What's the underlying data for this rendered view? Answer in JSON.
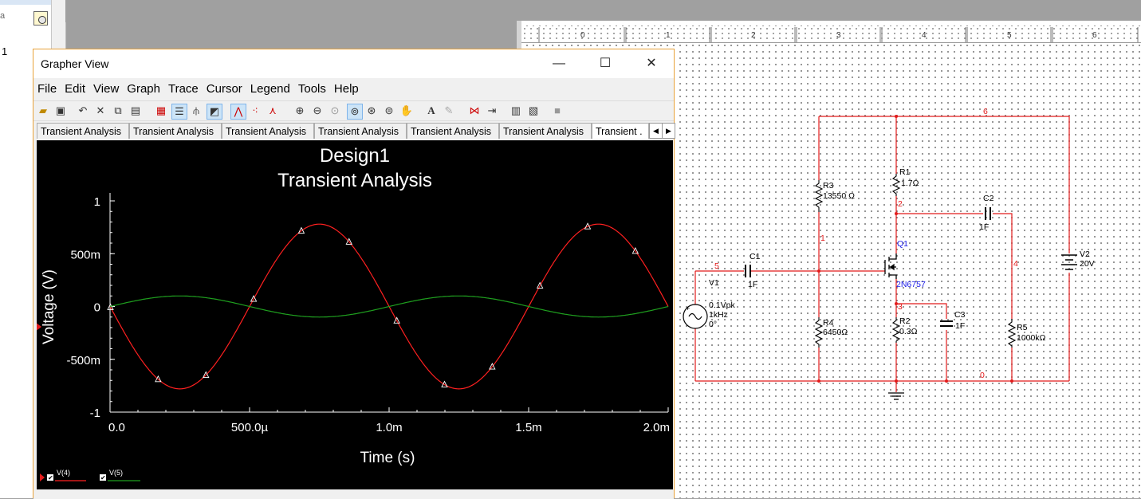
{
  "background": {
    "left_label_a": "a",
    "left_label_1": "1"
  },
  "grapher": {
    "title": "Grapher View",
    "window_buttons": {
      "minimize": "—",
      "maximize": "☐",
      "close": "✕"
    },
    "menu": [
      "File",
      "Edit",
      "View",
      "Graph",
      "Trace",
      "Cursor",
      "Legend",
      "Tools",
      "Help"
    ],
    "tabs": [
      "Transient Analysis",
      "Transient Analysis",
      "Transient Analysis",
      "Transient Analysis",
      "Transient Analysis",
      "Transient Analysis",
      "Transient ."
    ],
    "tab_prev": "◀",
    "tab_next": "▶",
    "plot_title": "Design1",
    "plot_subtitle": "Transient Analysis",
    "legend": [
      {
        "name": "V(4)",
        "color": "#ff2020"
      },
      {
        "name": "V(5)",
        "color": "#1fa01f"
      }
    ]
  },
  "chart_data": {
    "type": "line",
    "title": "Design1",
    "subtitle": "Transient Analysis",
    "xlabel": "Time (s)",
    "ylabel": "Voltage (V)",
    "xlim": [
      0,
      0.002
    ],
    "ylim": [
      -1,
      1
    ],
    "x_ticks": [
      "0.0",
      "500.0µ",
      "1.0m",
      "1.5m",
      "2.0m"
    ],
    "y_ticks": [
      "1",
      "500m",
      "0",
      "-500m",
      "-1"
    ],
    "series": [
      {
        "name": "V(4)",
        "color": "#ff2020",
        "shape": "sine",
        "amplitude": 0.78,
        "frequency_hz": 1000,
        "phase": "inverted",
        "markers": "triangle"
      },
      {
        "name": "V(5)",
        "color": "#1fa01f",
        "shape": "sine",
        "amplitude": 0.1,
        "frequency_hz": 1000,
        "phase": "normal"
      }
    ]
  },
  "schematic": {
    "ruler": [
      "0",
      "1",
      "2",
      "3",
      "4",
      "5",
      "6"
    ],
    "nets": {
      "n6": "6",
      "n2": "2",
      "n1": "1",
      "n5": "5",
      "n4": "4",
      "n3": "3",
      "n0": "0"
    },
    "R1": {
      "ref": "R1",
      "value": "1.7Ω"
    },
    "R2": {
      "ref": "R2",
      "value": "0.3Ω"
    },
    "R3": {
      "ref": "R3",
      "value": "13550 Ω"
    },
    "R4": {
      "ref": "R4",
      "value": "6450Ω"
    },
    "R5": {
      "ref": "R5",
      "value": "1000kΩ"
    },
    "C1": {
      "ref": "C1",
      "value": "1F"
    },
    "C2": {
      "ref": "C2",
      "value": "1F"
    },
    "C3": {
      "ref": "C3",
      "value": "1F"
    },
    "Q1": {
      "ref": "Q1",
      "value": "2N6757"
    },
    "V1": {
      "ref": "V1",
      "line1": "0.1Vpk",
      "line2": "1kHz",
      "line3": "0°"
    },
    "V2": {
      "ref": "V2",
      "value": "20V"
    },
    "colors": {
      "wire": "#e21b1b",
      "net": "#e21b1b",
      "part": "#000000",
      "transistor": "#1a1ae6"
    }
  }
}
